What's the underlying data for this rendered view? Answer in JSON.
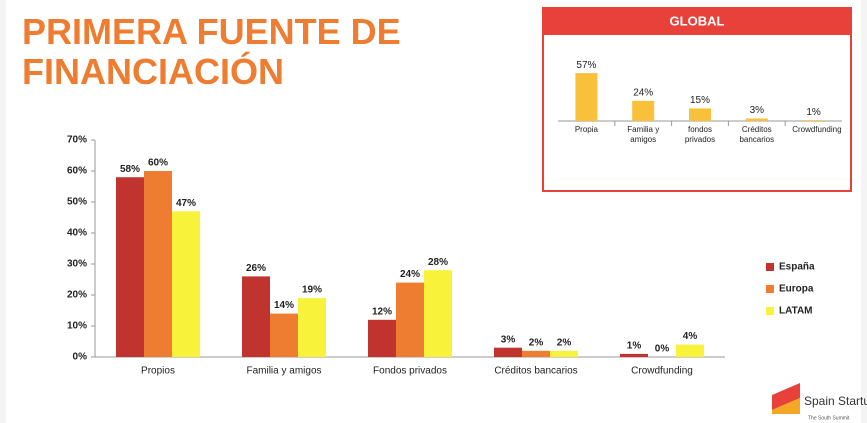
{
  "title": "PRIMERA FUENTE DE FINANCIACIÓN",
  "logo": {
    "name": "Spain Startup",
    "tagline": "The South Summit"
  },
  "chart_data": [
    {
      "type": "bar",
      "categories": [
        "Propios",
        "Familia y amigos",
        "Fondos privados",
        "Créditos bancarios",
        "Crowdfunding"
      ],
      "series": [
        {
          "name": "España",
          "color": "#c1332e",
          "values": [
            58,
            26,
            12,
            3,
            1
          ],
          "value_labels": [
            "58%",
            "26%",
            "12%",
            "3%",
            "1%"
          ]
        },
        {
          "name": "Europa",
          "color": "#ee7d31",
          "values": [
            60,
            14,
            24,
            2,
            0
          ],
          "value_labels": [
            "60%",
            "14%",
            "24%",
            "2%",
            "0%"
          ]
        },
        {
          "name": "LATAM",
          "color": "#f9f23a",
          "values": [
            47,
            19,
            28,
            2,
            4
          ],
          "value_labels": [
            "47%",
            "19%",
            "28%",
            "2%",
            "4%"
          ]
        }
      ],
      "ylim": [
        0,
        70
      ],
      "yticks": [
        {
          "value": 0,
          "label": "0%"
        },
        {
          "value": 10,
          "label": "10%"
        },
        {
          "value": 20,
          "label": "20%"
        },
        {
          "value": 30,
          "label": "30%"
        },
        {
          "value": 40,
          "label": "40%"
        },
        {
          "value": 50,
          "label": "50%"
        },
        {
          "value": 60,
          "label": "60%"
        },
        {
          "value": 70,
          "label": "70%"
        }
      ],
      "legend": "right"
    },
    {
      "type": "bar",
      "title": "GLOBAL",
      "categories": [
        "Propia",
        "Familia y amigos",
        "fondos privados",
        "Créditos bancarios",
        "Crowdfunding"
      ],
      "values": [
        57,
        24,
        15,
        3,
        1
      ],
      "value_labels": [
        "57%",
        "24%",
        "15%",
        "3%",
        "1%"
      ],
      "color": "#f9c13a"
    }
  ]
}
